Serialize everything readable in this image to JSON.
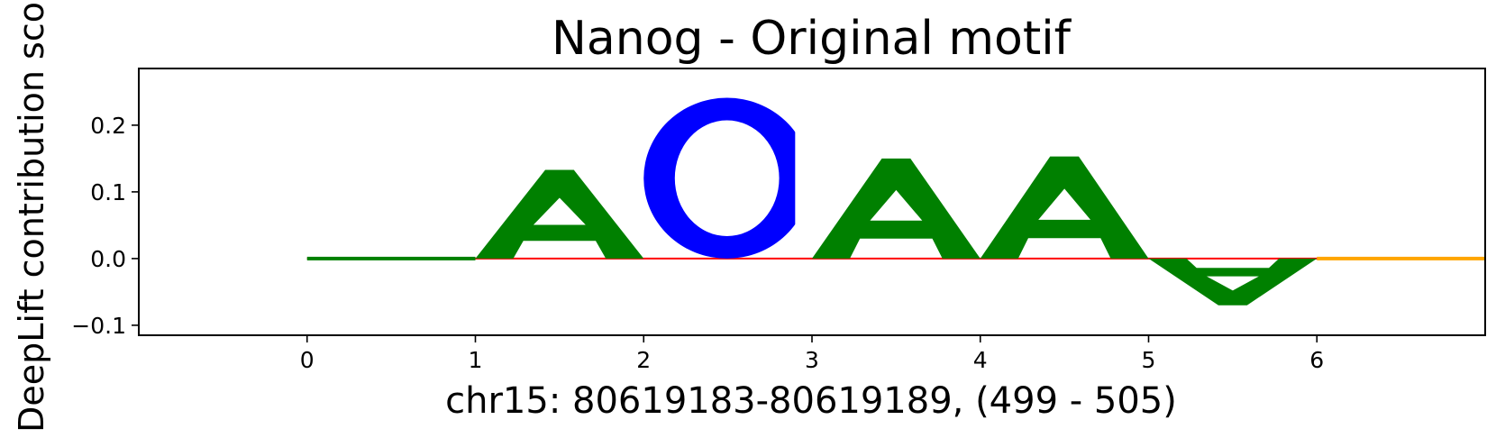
{
  "chart_data": {
    "type": "sequence-logo",
    "title": "Nanog - Original motif",
    "xlabel": "chr15: 80619183-80619189, (499 - 505)",
    "ylabel": "DeepLift contribution sco",
    "xlim": [
      -1,
      7
    ],
    "ylim": [
      -0.115,
      0.285
    ],
    "xticks": [
      0,
      1,
      2,
      3,
      4,
      5,
      6
    ],
    "xtick_labels": [
      "0",
      "1",
      "2",
      "3",
      "4",
      "5",
      "6"
    ],
    "yticks": [
      0.2,
      0.1,
      0.0,
      -0.1
    ],
    "ytick_labels": [
      "0.2",
      "0.1",
      "0.0",
      "−0.1"
    ],
    "colors": {
      "A": "#008000",
      "C": "#0000ff",
      "G": "#ffa500",
      "T": "#ff0000"
    },
    "letters": [
      {
        "pos": 0,
        "base": "A",
        "score": 0.001
      },
      {
        "pos": 1,
        "base": "A",
        "score": 0.133
      },
      {
        "pos": 2,
        "base": "C",
        "score": 0.241
      },
      {
        "pos": 3,
        "base": "A",
        "score": 0.15
      },
      {
        "pos": 4,
        "base": "A",
        "score": 0.153
      },
      {
        "pos": 5,
        "base": "A",
        "score": -0.07
      },
      {
        "pos": 6,
        "base": "G",
        "score": 0.0015
      }
    ]
  }
}
